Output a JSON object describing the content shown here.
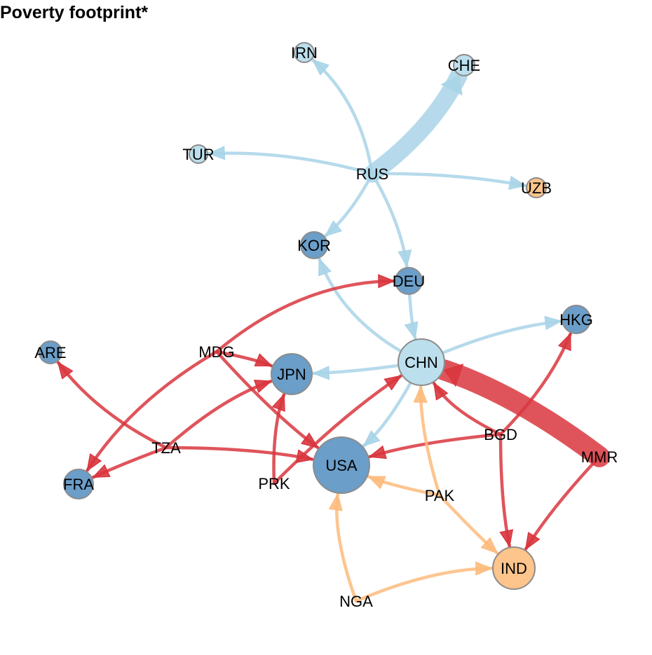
{
  "title": "Poverty footprint*",
  "colors": {
    "light_blue": "#bcdfed",
    "dark_blue": "#6b9ec9",
    "orange": "#fdc48c",
    "node_stroke": "#8c8c8c",
    "edge_blue": "#a9d4e8",
    "edge_red": "#d9363e",
    "edge_orange": "#fdbb7d"
  },
  "nodes": [
    {
      "id": "IRN",
      "label": "IRN",
      "fill": "light_blue"
    },
    {
      "id": "CHE",
      "label": "CHE",
      "fill": "light_blue"
    },
    {
      "id": "TUR",
      "label": "TUR",
      "fill": "light_blue"
    },
    {
      "id": "RUS",
      "label": "RUS",
      "fill": "light_blue"
    },
    {
      "id": "UZB",
      "label": "UZB",
      "fill": "orange"
    },
    {
      "id": "KOR",
      "label": "KOR",
      "fill": "dark_blue"
    },
    {
      "id": "DEU",
      "label": "DEU",
      "fill": "dark_blue"
    },
    {
      "id": "HKG",
      "label": "HKG",
      "fill": "dark_blue"
    },
    {
      "id": "ARE",
      "label": "ARE",
      "fill": "dark_blue"
    },
    {
      "id": "MDG",
      "label": "MDG",
      "fill": "none"
    },
    {
      "id": "JPN",
      "label": "JPN",
      "fill": "dark_blue"
    },
    {
      "id": "CHN",
      "label": "CHN",
      "fill": "light_blue"
    },
    {
      "id": "TZA",
      "label": "TZA",
      "fill": "none"
    },
    {
      "id": "BGD",
      "label": "BGD",
      "fill": "none"
    },
    {
      "id": "MMR",
      "label": "MMR",
      "fill": "none"
    },
    {
      "id": "FRA",
      "label": "FRA",
      "fill": "dark_blue"
    },
    {
      "id": "USA",
      "label": "USA",
      "fill": "dark_blue"
    },
    {
      "id": "PRK",
      "label": "PRK",
      "fill": "none"
    },
    {
      "id": "PAK",
      "label": "PAK",
      "fill": "none"
    },
    {
      "id": "IND",
      "label": "IND",
      "fill": "orange"
    },
    {
      "id": "NGA",
      "label": "NGA",
      "fill": "none"
    }
  ],
  "edges": [
    {
      "from": "RUS",
      "to": "CHE",
      "color": "edge_blue",
      "weight": 5
    },
    {
      "from": "RUS",
      "to": "IRN",
      "color": "edge_blue",
      "weight": 1
    },
    {
      "from": "RUS",
      "to": "TUR",
      "color": "edge_blue",
      "weight": 1
    },
    {
      "from": "RUS",
      "to": "UZB",
      "color": "edge_blue",
      "weight": 1
    },
    {
      "from": "RUS",
      "to": "KOR",
      "color": "edge_blue",
      "weight": 1
    },
    {
      "from": "RUS",
      "to": "DEU",
      "color": "edge_blue",
      "weight": 1
    },
    {
      "from": "DEU",
      "to": "CHN",
      "color": "edge_blue",
      "weight": 1
    },
    {
      "from": "CHN",
      "to": "KOR",
      "color": "edge_blue",
      "weight": 1
    },
    {
      "from": "CHN",
      "to": "HKG",
      "color": "edge_blue",
      "weight": 1
    },
    {
      "from": "CHN",
      "to": "JPN",
      "color": "edge_blue",
      "weight": 1
    },
    {
      "from": "CHN",
      "to": "USA",
      "color": "edge_blue",
      "weight": 1
    },
    {
      "from": "MMR",
      "to": "CHN",
      "color": "edge_red",
      "weight": 6
    },
    {
      "from": "MMR",
      "to": "IND",
      "color": "edge_red",
      "weight": 1
    },
    {
      "from": "BGD",
      "to": "CHN",
      "color": "edge_red",
      "weight": 1
    },
    {
      "from": "BGD",
      "to": "HKG",
      "color": "edge_red",
      "weight": 1
    },
    {
      "from": "BGD",
      "to": "USA",
      "color": "edge_red",
      "weight": 1
    },
    {
      "from": "BGD",
      "to": "IND",
      "color": "edge_red",
      "weight": 1
    },
    {
      "from": "MDG",
      "to": "DEU",
      "color": "edge_red",
      "weight": 1
    },
    {
      "from": "MDG",
      "to": "JPN",
      "color": "edge_red",
      "weight": 1
    },
    {
      "from": "MDG",
      "to": "USA",
      "color": "edge_red",
      "weight": 1
    },
    {
      "from": "MDG",
      "to": "FRA",
      "color": "edge_red",
      "weight": 1
    },
    {
      "from": "TZA",
      "to": "ARE",
      "color": "edge_red",
      "weight": 1
    },
    {
      "from": "TZA",
      "to": "JPN",
      "color": "edge_red",
      "weight": 1
    },
    {
      "from": "TZA",
      "to": "USA",
      "color": "edge_red",
      "weight": 1
    },
    {
      "from": "TZA",
      "to": "FRA",
      "color": "edge_red",
      "weight": 1
    },
    {
      "from": "PRK",
      "to": "JPN",
      "color": "edge_red",
      "weight": 1
    },
    {
      "from": "PRK",
      "to": "CHN",
      "color": "edge_red",
      "weight": 1
    },
    {
      "from": "PAK",
      "to": "CHN",
      "color": "edge_orange",
      "weight": 1
    },
    {
      "from": "PAK",
      "to": "USA",
      "color": "edge_orange",
      "weight": 1
    },
    {
      "from": "PAK",
      "to": "IND",
      "color": "edge_orange",
      "weight": 1
    },
    {
      "from": "NGA",
      "to": "USA",
      "color": "edge_orange",
      "weight": 1
    },
    {
      "from": "NGA",
      "to": "IND",
      "color": "edge_orange",
      "weight": 1
    }
  ]
}
